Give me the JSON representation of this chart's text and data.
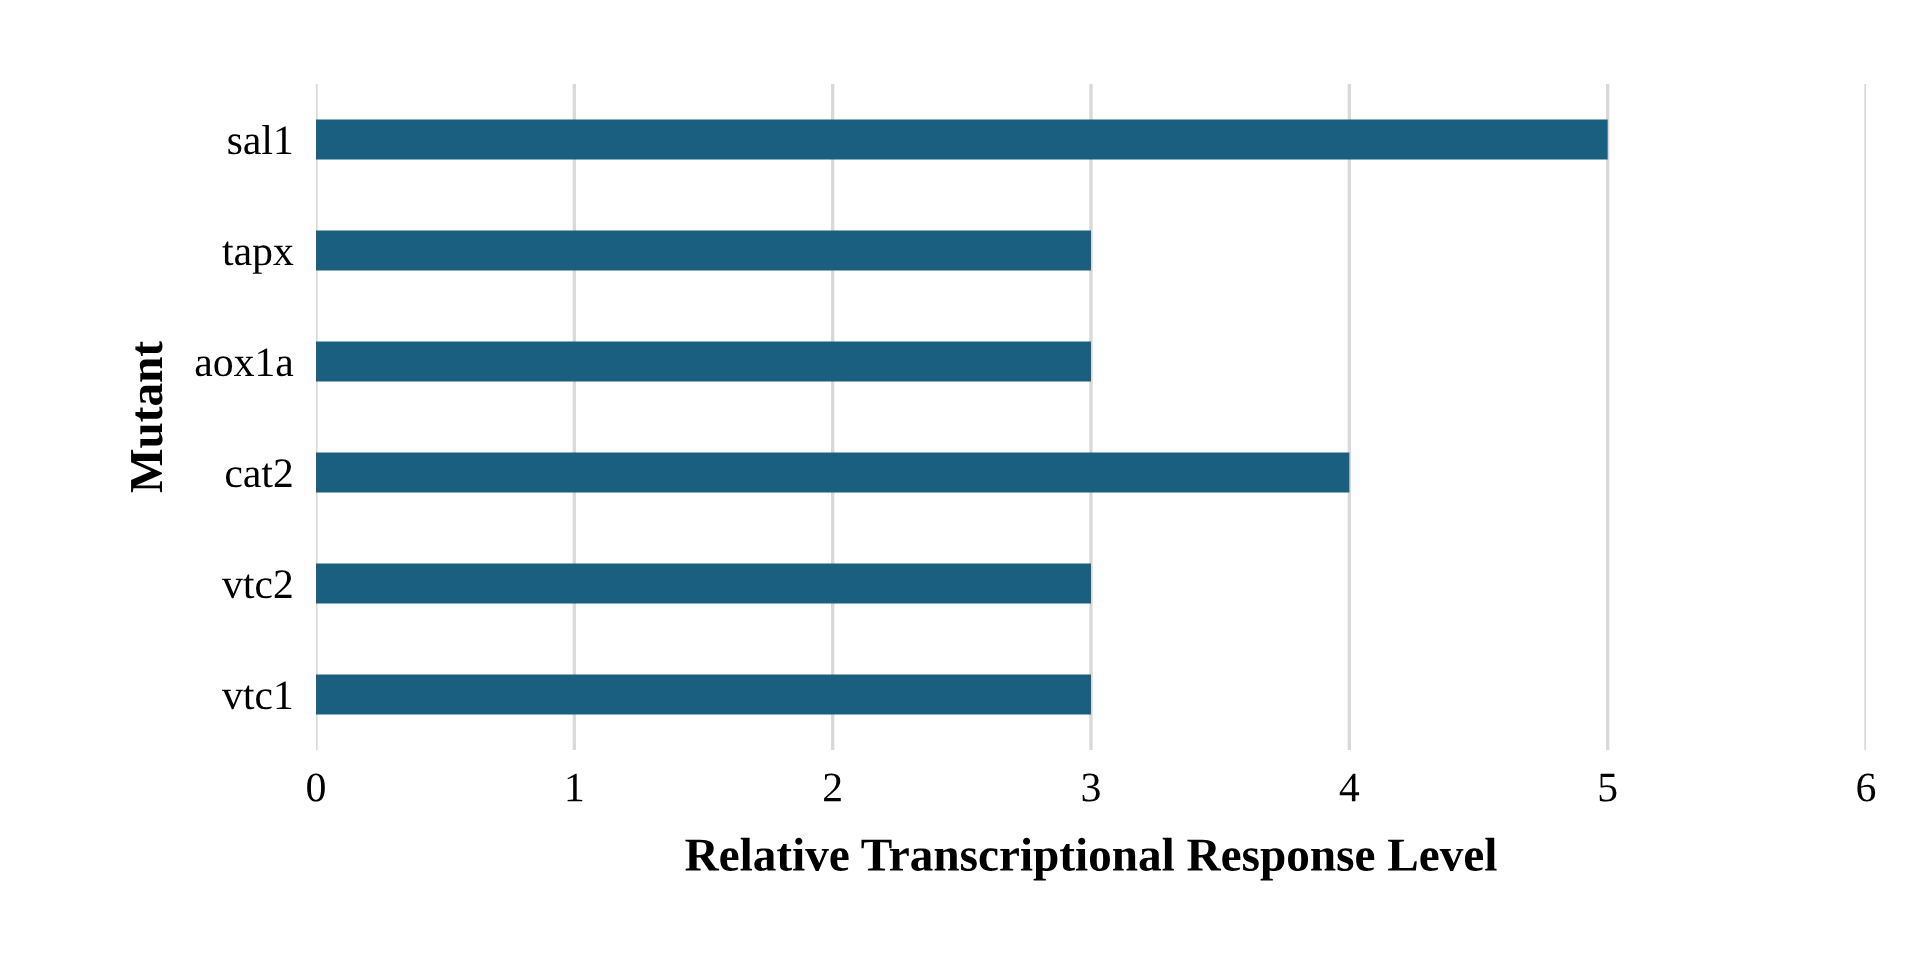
{
  "chart_data": {
    "type": "bar",
    "orientation": "horizontal",
    "categories": [
      "sal1",
      "tapx",
      "aox1a",
      "cat2",
      "vtc2",
      "vtc1"
    ],
    "values": [
      5,
      3,
      3,
      4,
      3,
      3
    ],
    "color": "#1a5e80",
    "xlabel": "Relative Transcriptional Response Level",
    "ylabel": "Mutant",
    "xlim": [
      0,
      6
    ],
    "xticks": [
      0,
      1,
      2,
      3,
      4,
      5,
      6
    ],
    "grid": "x",
    "legend": false
  }
}
